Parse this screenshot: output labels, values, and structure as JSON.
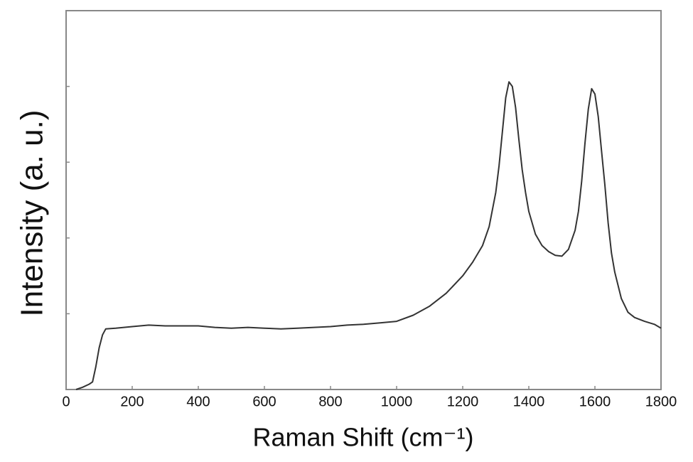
{
  "chart_data": {
    "type": "line",
    "x_label": "Raman Shift (cm⁻¹)",
    "y_label": "Intensity (a. u.)",
    "x": [
      30,
      50,
      70,
      80,
      90,
      100,
      110,
      120,
      150,
      200,
      250,
      300,
      350,
      400,
      450,
      500,
      550,
      600,
      650,
      700,
      750,
      800,
      850,
      900,
      950,
      1000,
      1050,
      1100,
      1150,
      1200,
      1230,
      1260,
      1280,
      1300,
      1310,
      1320,
      1330,
      1340,
      1350,
      1360,
      1370,
      1380,
      1390,
      1400,
      1420,
      1440,
      1460,
      1480,
      1500,
      1520,
      1540,
      1550,
      1560,
      1570,
      1580,
      1590,
      1600,
      1610,
      1620,
      1630,
      1640,
      1650,
      1660,
      1680,
      1700,
      1720,
      1750,
      1780,
      1800
    ],
    "series": [
      {
        "color": "#333333",
        "values": [
          0.0,
          0.03,
          0.07,
          0.1,
          0.3,
          0.55,
          0.72,
          0.8,
          0.81,
          0.83,
          0.85,
          0.84,
          0.84,
          0.84,
          0.82,
          0.81,
          0.82,
          0.81,
          0.8,
          0.81,
          0.82,
          0.83,
          0.85,
          0.86,
          0.88,
          0.9,
          0.98,
          1.1,
          1.27,
          1.5,
          1.68,
          1.9,
          2.15,
          2.6,
          2.95,
          3.4,
          3.85,
          4.06,
          4.0,
          3.72,
          3.3,
          2.9,
          2.6,
          2.35,
          2.05,
          1.9,
          1.82,
          1.77,
          1.76,
          1.85,
          2.1,
          2.35,
          2.75,
          3.25,
          3.7,
          3.97,
          3.9,
          3.6,
          3.15,
          2.7,
          2.2,
          1.8,
          1.55,
          1.2,
          1.02,
          0.95,
          0.9,
          0.86,
          0.81
        ]
      }
    ],
    "xlim": [
      0,
      1800
    ],
    "xticks": [
      0,
      200,
      400,
      600,
      800,
      1000,
      1200,
      1400,
      1600,
      1800
    ],
    "ylim": [
      0,
      5
    ],
    "yticks": [
      1,
      2,
      3,
      4
    ],
    "ytick_labels": false
  }
}
